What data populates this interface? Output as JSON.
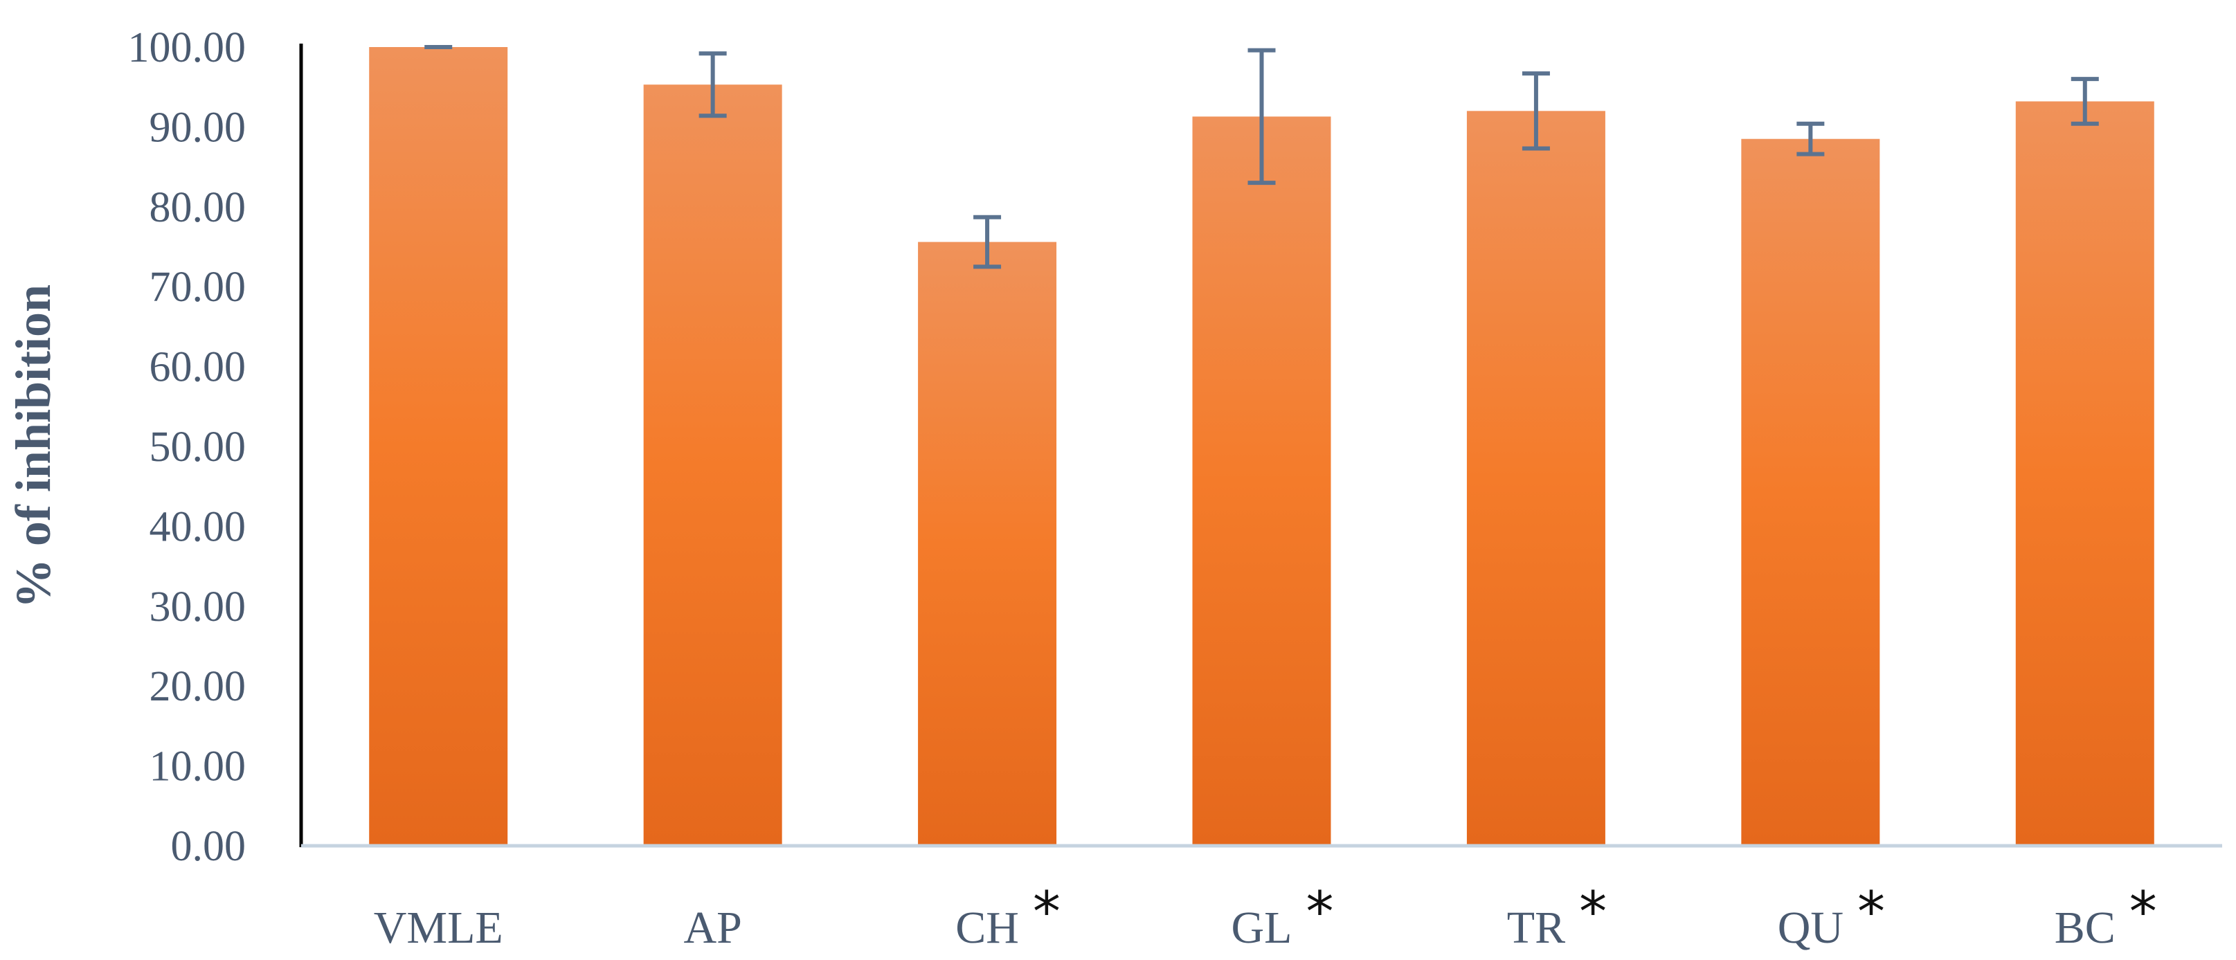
{
  "chart_data": {
    "type": "bar",
    "ylabel": "% of inhibition",
    "xlabel": "",
    "ylim": [
      0,
      100
    ],
    "y_ticks": [
      "0.00",
      "10.00",
      "20.00",
      "30.00",
      "40.00",
      "50.00",
      "60.00",
      "70.00",
      "80.00",
      "90.00",
      "100.00"
    ],
    "y_tick_values": [
      0,
      10,
      20,
      30,
      40,
      50,
      60,
      70,
      80,
      90,
      100
    ],
    "categories": [
      "VMLE",
      "AP",
      "CH",
      "GL",
      "TR",
      "QU",
      "BC"
    ],
    "values": [
      100.0,
      95.3,
      75.6,
      91.3,
      92.0,
      88.5,
      93.2
    ],
    "errors": [
      0.0,
      3.9,
      3.1,
      8.3,
      4.7,
      1.9,
      2.8
    ],
    "significance": [
      "",
      "",
      "*",
      "*",
      "*",
      "*",
      "*"
    ],
    "grid": false,
    "colors": {
      "bar_top": "#f0925a",
      "bar_mid": "#f47b2a",
      "bar_bottom": "#e5681c",
      "error_bar": "#5b7390",
      "axis_text": "#4a5a70",
      "y_axis_line": "#000000",
      "x_axis_line": "#c5d3e0"
    }
  }
}
